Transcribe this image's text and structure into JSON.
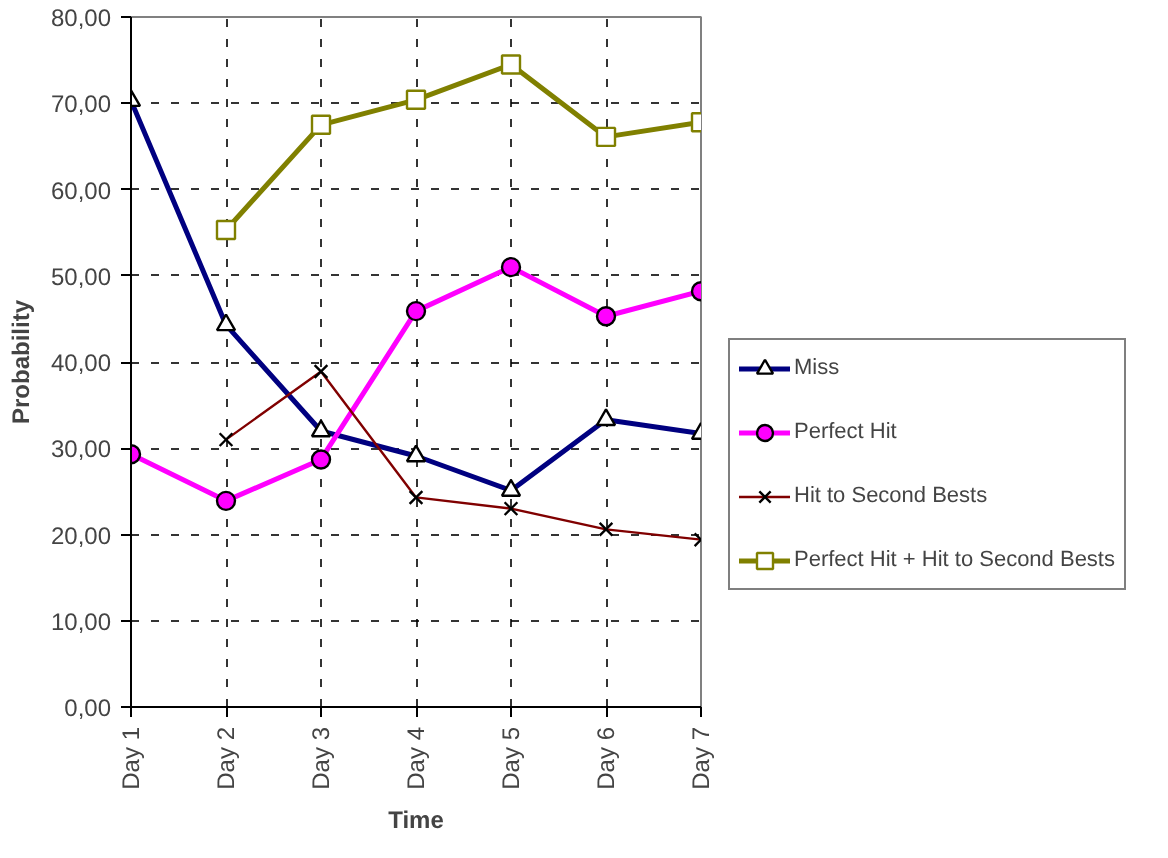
{
  "chart_data": {
    "type": "line",
    "xlabel": "Time",
    "ylabel": "Probability",
    "categories": [
      "Day 1",
      "Day 2",
      "Day 3",
      "Day 4",
      "Day 5",
      "Day 6",
      "Day 7"
    ],
    "series": [
      {
        "name": "Miss",
        "color": "#000080",
        "marker": "triangle",
        "values": [
          70.3,
          44.3,
          32.0,
          29.1,
          25.1,
          33.3,
          31.7
        ]
      },
      {
        "name": "Perfect Hit",
        "color": "#ff00ff",
        "marker": "circle",
        "values": [
          29.3,
          23.9,
          28.7,
          45.9,
          51.0,
          45.3,
          48.2
        ]
      },
      {
        "name": "Hit to Second Bests",
        "color": "#800000",
        "marker": "cross",
        "values": [
          null,
          31.0,
          38.9,
          24.3,
          23.0,
          20.6,
          19.4
        ]
      },
      {
        "name": "Perfect Hit + Hit to Second Bests",
        "color": "#808000",
        "marker": "square",
        "values": [
          null,
          55.3,
          67.5,
          70.4,
          74.5,
          66.1,
          67.8
        ]
      }
    ],
    "ylim": [
      0,
      80
    ],
    "yticks": [
      {
        "value": 0,
        "label": "0,00"
      },
      {
        "value": 10,
        "label": "10,00"
      },
      {
        "value": 20,
        "label": "20,00"
      },
      {
        "value": 30,
        "label": "30,00"
      },
      {
        "value": 40,
        "label": "40,00"
      },
      {
        "value": 50,
        "label": "50,00"
      },
      {
        "value": 60,
        "label": "60,00"
      },
      {
        "value": 70,
        "label": "70,00"
      },
      {
        "value": 80,
        "label": "80,00"
      }
    ],
    "grid": true,
    "legend": "right",
    "line_style": "solid"
  }
}
